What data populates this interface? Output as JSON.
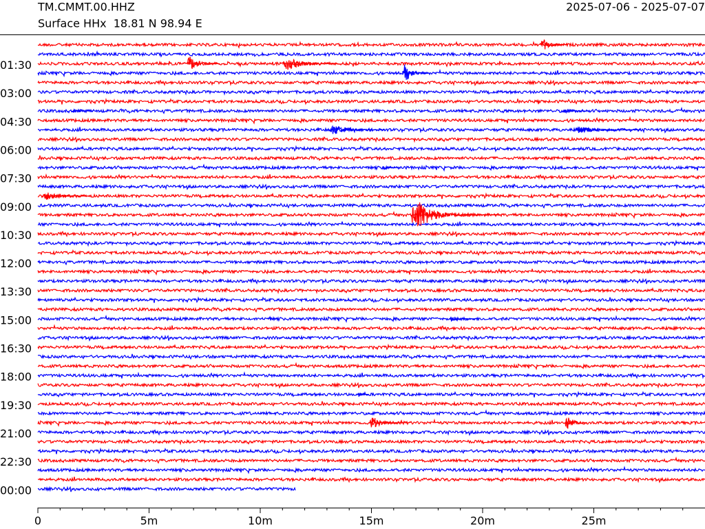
{
  "chart_data": {
    "type": "helicorder",
    "title": "TM.CMMT.00.HHZ",
    "subtitle": "Surface HHx  18.81 N 98.94 E",
    "date_range": "2025-07-06 - 2025-07-07",
    "xlim": [
      0,
      30
    ],
    "ylim": [
      0,
      25
    ],
    "xticks": [
      0,
      {
        "value": 5,
        "label": "5m"
      },
      {
        "value": 10,
        "label": "10m"
      },
      {
        "value": 15,
        "label": "15m"
      },
      {
        "value": 20,
        "label": "20m"
      },
      {
        "value": 25,
        "label": "25m"
      }
    ],
    "xminorticks": [
      1,
      2,
      3,
      4,
      6,
      7,
      8,
      9,
      11,
      12,
      13,
      14,
      16,
      17,
      18,
      19,
      21,
      22,
      23,
      24,
      26,
      27,
      28,
      29
    ],
    "yticks": [
      {
        "value": 1.5,
        "label": "01:30"
      },
      {
        "value": 3,
        "label": "03:00"
      },
      {
        "value": 4.5,
        "label": "04:30"
      },
      {
        "value": 6,
        "label": "06:00"
      },
      {
        "value": 7.5,
        "label": "07:30"
      },
      {
        "value": 9,
        "label": "09:00"
      },
      {
        "value": 10.5,
        "label": "10:30"
      },
      {
        "value": 12,
        "label": "12:00"
      },
      {
        "value": 13.5,
        "label": "13:30"
      },
      {
        "value": 15,
        "label": "15:00"
      },
      {
        "value": 16.5,
        "label": "16:30"
      },
      {
        "value": 18,
        "label": "18:00"
      },
      {
        "value": 19.5,
        "label": "19:30"
      },
      {
        "value": 21,
        "label": "21:00"
      },
      {
        "value": 22.5,
        "label": "22:30"
      },
      {
        "value": 24,
        "label": "00:00"
      }
    ],
    "colors": [
      "#ff0000",
      "#0000ff"
    ],
    "rows": [
      0.5,
      1,
      1.5,
      2,
      2.5,
      3,
      3.5,
      4,
      4.5,
      5,
      5.5,
      6,
      6.5,
      7,
      7.5,
      8,
      8.5,
      9,
      9.5,
      10,
      10.5,
      11,
      11.5,
      12,
      12.5,
      13,
      13.5,
      14,
      14.5,
      15,
      15.5,
      16,
      16.5,
      17,
      17.5,
      18,
      18.5,
      19,
      19.5,
      20,
      20.5,
      21,
      21.5,
      22,
      22.5,
      23,
      23.5,
      24
    ],
    "last_row_end": 11.6,
    "events": [
      {
        "hour": 0.5,
        "minute": 22.6,
        "amplitude": 0.5,
        "duration": 1.2
      },
      {
        "hour": 1.5,
        "minute": 6.7,
        "amplitude": 0.6,
        "duration": 1.5
      },
      {
        "hour": 1.5,
        "minute": 11.0,
        "amplitude": 0.5,
        "duration": 2.5
      },
      {
        "hour": 2,
        "minute": 16.4,
        "amplitude": 0.7,
        "duration": 1.2
      },
      {
        "hour": 4,
        "minute": 23.6,
        "amplitude": 0.2,
        "duration": 1
      },
      {
        "hour": 4,
        "minute": 1.5,
        "amplitude": 0.15,
        "duration": 1
      },
      {
        "hour": 5,
        "minute": 13.1,
        "amplitude": 0.4,
        "duration": 2.5
      },
      {
        "hour": 5,
        "minute": 24.1,
        "amplitude": 0.25,
        "duration": 3
      },
      {
        "hour": 7,
        "minute": 15.5,
        "amplitude": 0.25,
        "duration": 0.6
      },
      {
        "hour": 8.5,
        "minute": 0.2,
        "amplitude": 0.3,
        "duration": 2
      },
      {
        "hour": 9.5,
        "minute": 16.8,
        "amplitude": 5.4,
        "duration": 4
      },
      {
        "hour": 15,
        "minute": 18.5,
        "amplitude": 0.2,
        "duration": 1.2
      },
      {
        "hour": 15,
        "minute": 10.4,
        "amplitude": 0.15,
        "duration": 0.4
      },
      {
        "hour": 19,
        "minute": 14.4,
        "amplitude": 0.2,
        "duration": 0.5
      },
      {
        "hour": 20.5,
        "minute": 14.9,
        "amplitude": 0.5,
        "duration": 1.5
      },
      {
        "hour": 20.5,
        "minute": 23.7,
        "amplitude": 0.7,
        "duration": 1
      }
    ]
  }
}
